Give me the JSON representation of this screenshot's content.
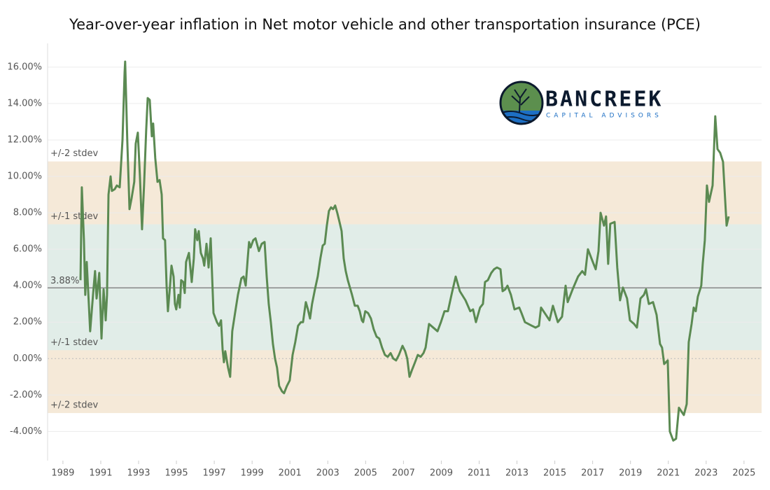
{
  "chart_data": {
    "type": "line",
    "title": "Year-over-year inflation in Net motor vehicle and other transportation insurance  (PCE)",
    "logo": {
      "name": "BANCREEK",
      "tagline": "CAPITAL ADVISORS"
    },
    "color": "#5b8a52",
    "x": [
      1989.93,
      1990.0,
      1990.11,
      1990.18,
      1990.26,
      1990.37,
      1990.44,
      1990.59,
      1990.7,
      1990.78,
      1990.92,
      1991.04,
      1991.15,
      1991.26,
      1991.33,
      1991.41,
      1991.52,
      1991.59,
      1991.74,
      1991.85,
      1992.0,
      1992.15,
      1992.26,
      1992.29,
      1992.4,
      1992.52,
      1992.63,
      1992.77,
      1992.85,
      1992.96,
      1993.07,
      1993.18,
      1993.29,
      1993.4,
      1993.48,
      1993.59,
      1993.7,
      1993.77,
      1993.88,
      1994.0,
      1994.11,
      1994.22,
      1994.29,
      1994.4,
      1994.48,
      1994.55,
      1994.66,
      1994.74,
      1994.85,
      1994.92,
      1994.99,
      1995.11,
      1995.18,
      1995.25,
      1995.36,
      1995.44,
      1995.51,
      1995.66,
      1995.81,
      1995.92,
      1995.99,
      1996.1,
      1996.18,
      1996.29,
      1996.4,
      1996.47,
      1996.59,
      1996.7,
      1996.81,
      1996.96,
      1997.14,
      1997.25,
      1997.36,
      1997.44,
      1997.51,
      1997.58,
      1997.73,
      1997.84,
      1997.95,
      1998.1,
      1998.25,
      1998.43,
      1998.55,
      1998.66,
      1998.77,
      1998.84,
      1998.92,
      1999.06,
      1999.18,
      1999.36,
      1999.51,
      1999.66,
      1999.77,
      1999.88,
      1999.99,
      2000.1,
      2000.21,
      2000.32,
      2000.43,
      2000.58,
      2000.69,
      2000.84,
      2000.99,
      2001.14,
      2001.28,
      2001.43,
      2001.58,
      2001.69,
      2001.84,
      2001.95,
      2002.06,
      2002.17,
      2002.32,
      2002.47,
      2002.61,
      2002.73,
      2002.84,
      2002.95,
      2003.06,
      2003.17,
      2003.28,
      2003.39,
      2003.5,
      2003.62,
      2003.73,
      2003.84,
      2003.95,
      2004.06,
      2004.17,
      2004.28,
      2004.43,
      2004.58,
      2004.69,
      2004.8,
      2004.87,
      2004.98,
      2005.13,
      2005.28,
      2005.43,
      2005.58,
      2005.72,
      2005.87,
      2006.02,
      2006.17,
      2006.32,
      2006.46,
      2006.61,
      2006.76,
      2006.95,
      2007.09,
      2007.2,
      2007.32,
      2007.46,
      2007.61,
      2007.76,
      2007.91,
      2008.06,
      2008.17,
      2008.35,
      2008.8,
      2008.98,
      2009.17,
      2009.35,
      2009.54,
      2009.76,
      2009.98,
      2010.28,
      2010.53,
      2010.68,
      2010.83,
      2011.05,
      2011.2,
      2011.31,
      2011.46,
      2011.64,
      2011.79,
      2011.94,
      2012.13,
      2012.24,
      2012.38,
      2012.5,
      2012.68,
      2012.87,
      2013.12,
      2013.24,
      2013.42,
      2013.79,
      2013.98,
      2014.16,
      2014.27,
      2014.53,
      2014.72,
      2014.9,
      2015.16,
      2015.38,
      2015.57,
      2015.68,
      2015.94,
      2016.23,
      2016.45,
      2016.6,
      2016.75,
      2017.01,
      2017.16,
      2017.31,
      2017.42,
      2017.6,
      2017.71,
      2017.82,
      2017.93,
      2018.16,
      2018.3,
      2018.45,
      2018.6,
      2018.82,
      2018.97,
      2019.19,
      2019.34,
      2019.53,
      2019.71,
      2019.82,
      2019.97,
      2020.19,
      2020.38,
      2020.56,
      2020.67,
      2020.78,
      2020.97,
      2021.08,
      2021.26,
      2021.41,
      2021.56,
      2021.82,
      2021.97,
      2022.08,
      2022.23,
      2022.34,
      2022.45,
      2022.56,
      2022.74,
      2022.82,
      2022.93,
      2023.04,
      2023.15,
      2023.34,
      2023.48,
      2023.6,
      2023.74,
      2023.89,
      2024.08,
      2024.19
    ],
    "values": [
      4.3,
      9.4,
      6.5,
      3.5,
      5.3,
      3.0,
      1.5,
      3.5,
      4.8,
      3.3,
      4.7,
      1.1,
      3.8,
      2.1,
      3.5,
      9.0,
      10.0,
      9.2,
      9.3,
      9.5,
      9.4,
      12.0,
      15.7,
      16.3,
      12.0,
      8.2,
      8.8,
      9.7,
      11.8,
      12.4,
      10.0,
      7.1,
      9.5,
      12.5,
      14.3,
      14.2,
      12.2,
      12.9,
      11.0,
      9.7,
      9.8,
      9.0,
      6.6,
      6.5,
      4.0,
      2.6,
      4.0,
      5.1,
      4.5,
      3.0,
      2.7,
      3.5,
      2.8,
      4.3,
      4.2,
      3.6,
      5.3,
      5.8,
      4.2,
      5.5,
      7.1,
      6.5,
      7.0,
      5.8,
      5.5,
      5.1,
      6.3,
      5.0,
      6.6,
      2.5,
      2.0,
      1.8,
      2.1,
      0.5,
      -0.2,
      0.4,
      -0.5,
      -1.0,
      1.5,
      2.5,
      3.5,
      4.4,
      4.5,
      4.0,
      5.5,
      6.4,
      6.1,
      6.5,
      6.6,
      5.9,
      6.3,
      6.4,
      4.5,
      3.0,
      2.0,
      0.8,
      0.0,
      -0.5,
      -1.5,
      -1.8,
      -1.9,
      -1.5,
      -1.2,
      0.2,
      0.9,
      1.8,
      2.0,
      2.0,
      3.1,
      2.7,
      2.2,
      3.0,
      3.8,
      4.5,
      5.5,
      6.2,
      6.3,
      7.3,
      8.1,
      8.3,
      8.2,
      8.4,
      8.0,
      7.5,
      7.0,
      5.5,
      4.8,
      4.3,
      3.9,
      3.5,
      2.9,
      2.9,
      2.6,
      2.1,
      2.0,
      2.6,
      2.5,
      2.2,
      1.6,
      1.2,
      1.1,
      0.6,
      0.2,
      0.1,
      0.3,
      0.0,
      -0.1,
      0.2,
      0.7,
      0.4,
      0.0,
      -1.0,
      -0.6,
      -0.2,
      0.2,
      0.1,
      0.3,
      0.6,
      1.9,
      1.5,
      2.0,
      2.6,
      2.6,
      3.5,
      4.5,
      3.7,
      3.2,
      2.6,
      2.7,
      2.0,
      2.8,
      3.0,
      4.2,
      4.3,
      4.7,
      4.9,
      5.0,
      4.9,
      3.7,
      3.8,
      4.0,
      3.5,
      2.7,
      2.8,
      2.5,
      2.0,
      1.8,
      1.7,
      1.8,
      2.8,
      2.4,
      2.1,
      2.9,
      2.0,
      2.3,
      4.0,
      3.1,
      3.8,
      4.5,
      4.8,
      4.6,
      6.0,
      5.3,
      4.9,
      5.9,
      8.0,
      7.3,
      7.8,
      5.2,
      7.4,
      7.5,
      5.0,
      3.2,
      3.9,
      3.3,
      2.1,
      1.9,
      1.7,
      3.3,
      3.5,
      3.8,
      3.0,
      3.1,
      2.4,
      0.8,
      0.6,
      -0.3,
      -0.1,
      -4.0,
      -4.5,
      -4.4,
      -2.7,
      -3.1,
      -2.5,
      0.9,
      1.9,
      2.8,
      2.6,
      3.4,
      4.0,
      5.2,
      6.5,
      9.5,
      8.6,
      9.5,
      13.3,
      11.5,
      11.3,
      10.8,
      7.3,
      7.8
    ],
    "mean": {
      "value": 3.88,
      "label": "3.88%"
    },
    "bands": [
      {
        "label": "+/-2 stdev",
        "lower": -2.99,
        "upper": 10.82,
        "color": "#f5e9d8"
      },
      {
        "label": "+/-1 stdev",
        "lower": 0.46,
        "upper": 7.37,
        "color": "#e1ede8"
      }
    ],
    "xlim": [
      1988.19,
      2025.93
    ],
    "xticks": [
      1989,
      1991,
      1993,
      1995,
      1997,
      1999,
      2001,
      2003,
      2005,
      2007,
      2009,
      2011,
      2013,
      2015,
      2017,
      2019,
      2021,
      2023,
      2025
    ],
    "ylim": [
      -5.6,
      17.3
    ],
    "yticks": [
      {
        "value": -4,
        "label": "-4.00%"
      },
      {
        "value": -2,
        "label": "-2.00%"
      },
      {
        "value": 0,
        "label": "0.00%"
      },
      {
        "value": 2,
        "label": "2.00%"
      },
      {
        "value": 4,
        "label": "4.00%"
      },
      {
        "value": 6,
        "label": "6.00%"
      },
      {
        "value": 8,
        "label": "8.00%"
      },
      {
        "value": 10,
        "label": "10.00%"
      },
      {
        "value": 12,
        "label": "12.00%"
      },
      {
        "value": 14,
        "label": "14.00%"
      },
      {
        "value": 16,
        "label": "16.00%"
      }
    ],
    "grid": true
  }
}
